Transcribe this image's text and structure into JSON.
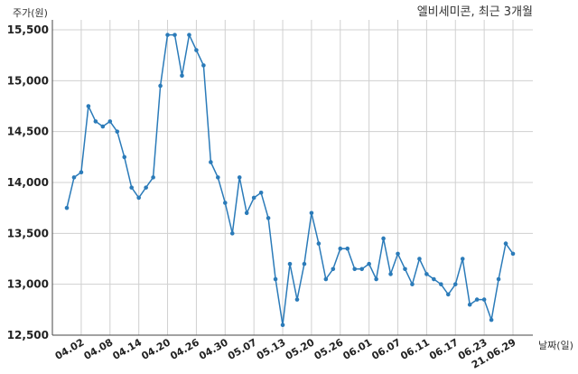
{
  "chart_data": {
    "type": "line",
    "title": "엘비세미콘, 최근 3개월",
    "xlabel": "날짜(일)",
    "ylabel": "주가(원)",
    "ylim": [
      12500,
      15500
    ],
    "yticks": [
      12500,
      13000,
      13500,
      14000,
      14500,
      15000,
      15500
    ],
    "ytick_labels": [
      "12,500",
      "13,000",
      "13,500",
      "14,000",
      "14,500",
      "15,000",
      "15,500"
    ],
    "xticks": [
      "04.02",
      "04.08",
      "04.14",
      "04.20",
      "04.26",
      "04.30",
      "05.07",
      "05.13",
      "05.20",
      "05.26",
      "06.01",
      "06.07",
      "06.11",
      "06.17",
      "06.23",
      "21.06.29"
    ],
    "xtick_index": [
      2,
      6,
      10,
      14,
      18,
      22,
      26,
      30,
      34,
      38,
      42,
      46,
      50,
      54,
      58,
      62
    ],
    "grid": true,
    "colors": {
      "line": "#2b7bb9",
      "grid": "#d0d0d0",
      "axis": "#444444"
    },
    "series": [
      {
        "values": [
          13750,
          14050,
          14100,
          14750,
          14600,
          14550,
          14600,
          14500,
          14250,
          13950,
          13850,
          13950,
          14050,
          14950,
          15450,
          15450,
          15050,
          15450,
          15300,
          15150,
          14200,
          14050,
          13800,
          13500,
          14050,
          13700,
          13850,
          13900,
          13650,
          13050,
          12600,
          13200,
          12850,
          13200,
          13700,
          13400,
          13050,
          13150,
          13350,
          13350,
          13150,
          13150,
          13200,
          13050,
          13450,
          13100,
          13300,
          13150,
          13000,
          13250,
          13100,
          13050,
          13000,
          12900,
          13000,
          13250,
          12800,
          12850,
          12850,
          12650,
          13050,
          13400,
          13300
        ]
      }
    ]
  }
}
